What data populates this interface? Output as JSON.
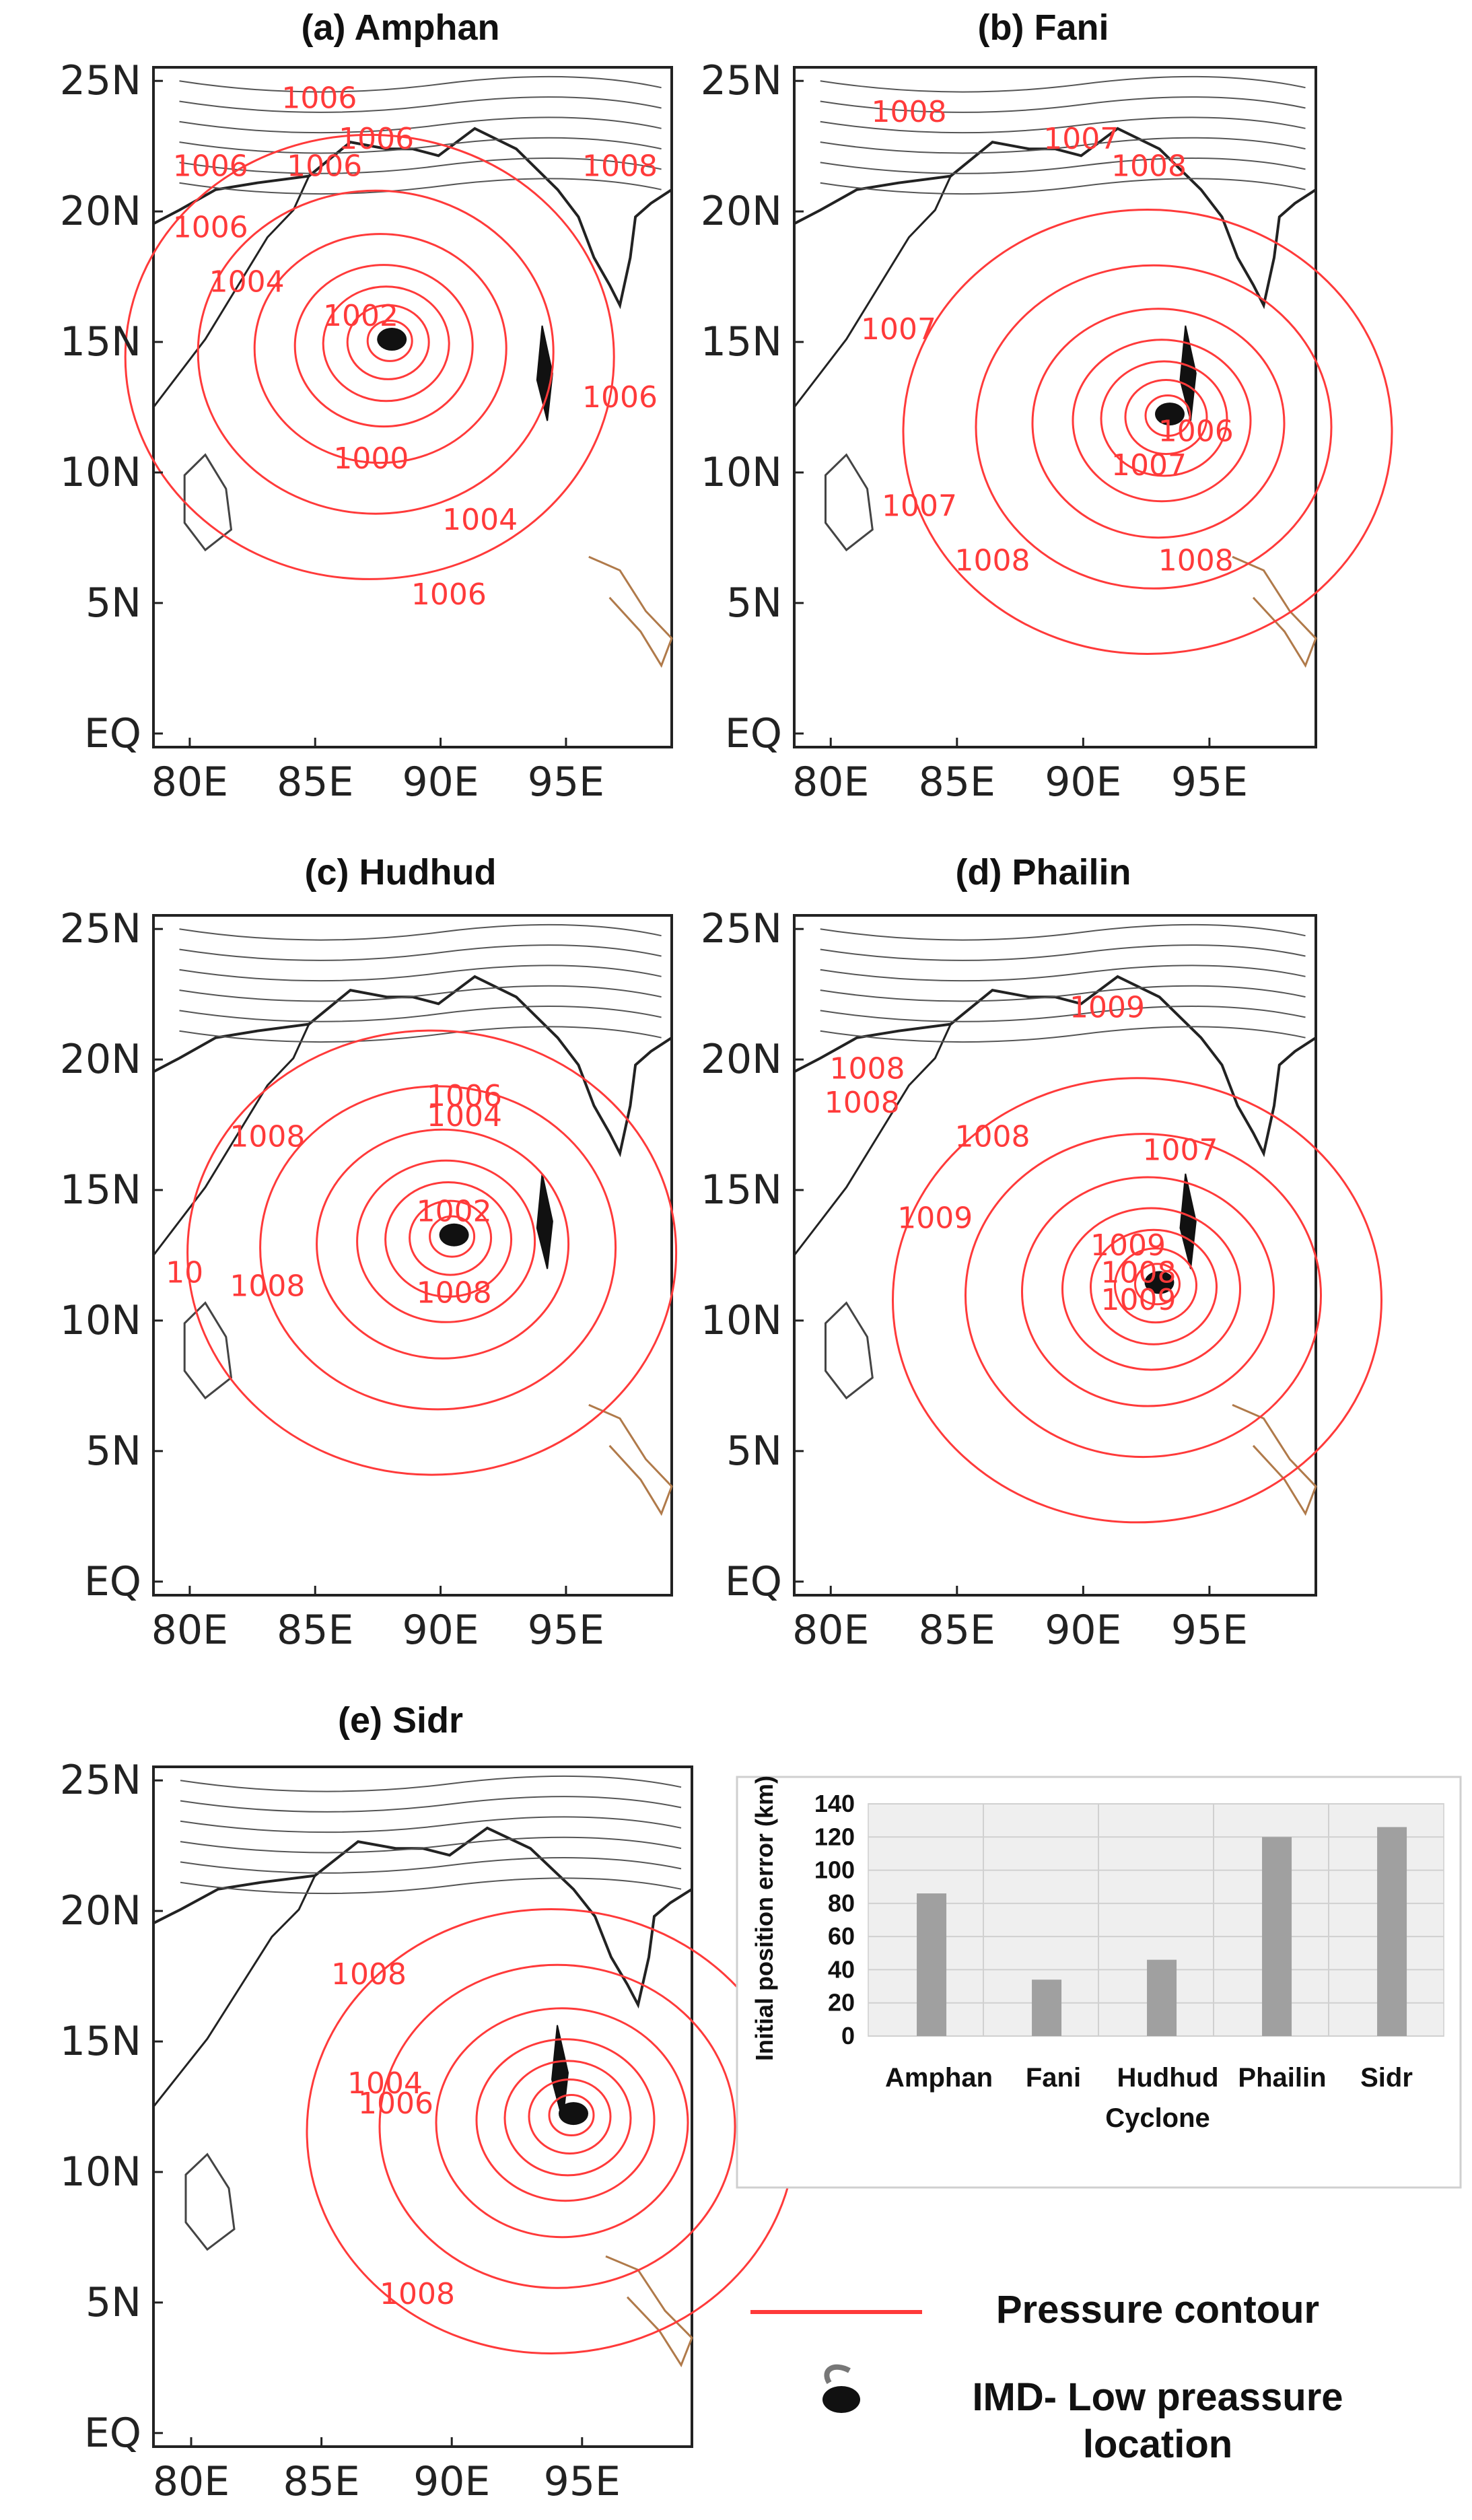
{
  "panels": [
    {
      "title": "(a) Amphan",
      "contour_labels": [
        "1006",
        "1006",
        "1006",
        "1006",
        "1006",
        "1008",
        "1004",
        "1002",
        "1006",
        "1000",
        "1004",
        "1006"
      ]
    },
    {
      "title": "(b) Fani",
      "contour_labels": [
        "1008",
        "1007",
        "1008",
        "1007",
        "1006",
        "1007",
        "1007",
        "1008",
        "1008"
      ]
    },
    {
      "title": "(c) Hudhud",
      "contour_labels": [
        "1006",
        "1004",
        "1008",
        "1002",
        "1008",
        "1008",
        "10"
      ]
    },
    {
      "title": "(d) Phailin",
      "contour_labels": [
        "1009",
        "1008",
        "1008",
        "1008",
        "1009",
        "1009",
        "1008",
        "1009",
        "1007"
      ]
    },
    {
      "title": "(e) Sidr",
      "contour_labels": [
        "1008",
        "1004",
        "1006",
        "1008"
      ]
    }
  ],
  "axes": {
    "lat_ticks": [
      "25N",
      "20N",
      "15N",
      "10N",
      "5N",
      "EQ"
    ],
    "lon_ticks": [
      "80E",
      "85E",
      "90E",
      "95E"
    ]
  },
  "chart_data": {
    "type": "bar",
    "categories": [
      "Amphan",
      "Fani",
      "Hudhud",
      "Phailin",
      "Sidr"
    ],
    "values": [
      86,
      34,
      46,
      120,
      126
    ],
    "ylabel": "Initial position error (km)",
    "xlabel": "Cyclone",
    "ylim": [
      0,
      140
    ],
    "yticks": [
      0,
      20,
      40,
      60,
      80,
      100,
      120,
      140
    ],
    "bar_color": "#a0a0a0",
    "grid": true
  },
  "legend": {
    "contour_label": "Pressure contour",
    "contour_color": "#ff3a3a",
    "imd_label_line1": "IMD- Low preassure",
    "imd_label_line2": "location"
  }
}
